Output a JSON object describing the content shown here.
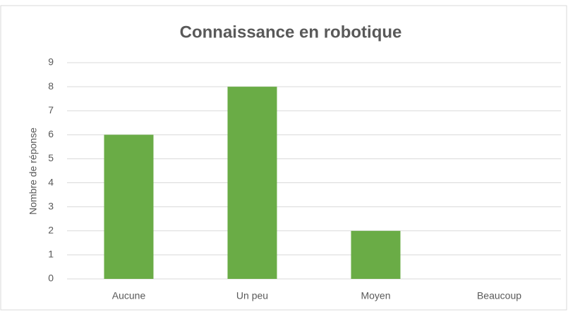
{
  "chart_data": {
    "type": "bar",
    "title": "Connaissance en robotique",
    "y_label": "Nombre de réponse",
    "categories": [
      "Aucune",
      "Un peu",
      "Moyen",
      "Beaucoup"
    ],
    "values": [
      6,
      8,
      2,
      0
    ],
    "color": "#6aac46",
    "ylim": [
      0,
      9
    ],
    "yticks": [
      0,
      1,
      2,
      3,
      4,
      5,
      6,
      7,
      8,
      9
    ],
    "grid": true
  }
}
